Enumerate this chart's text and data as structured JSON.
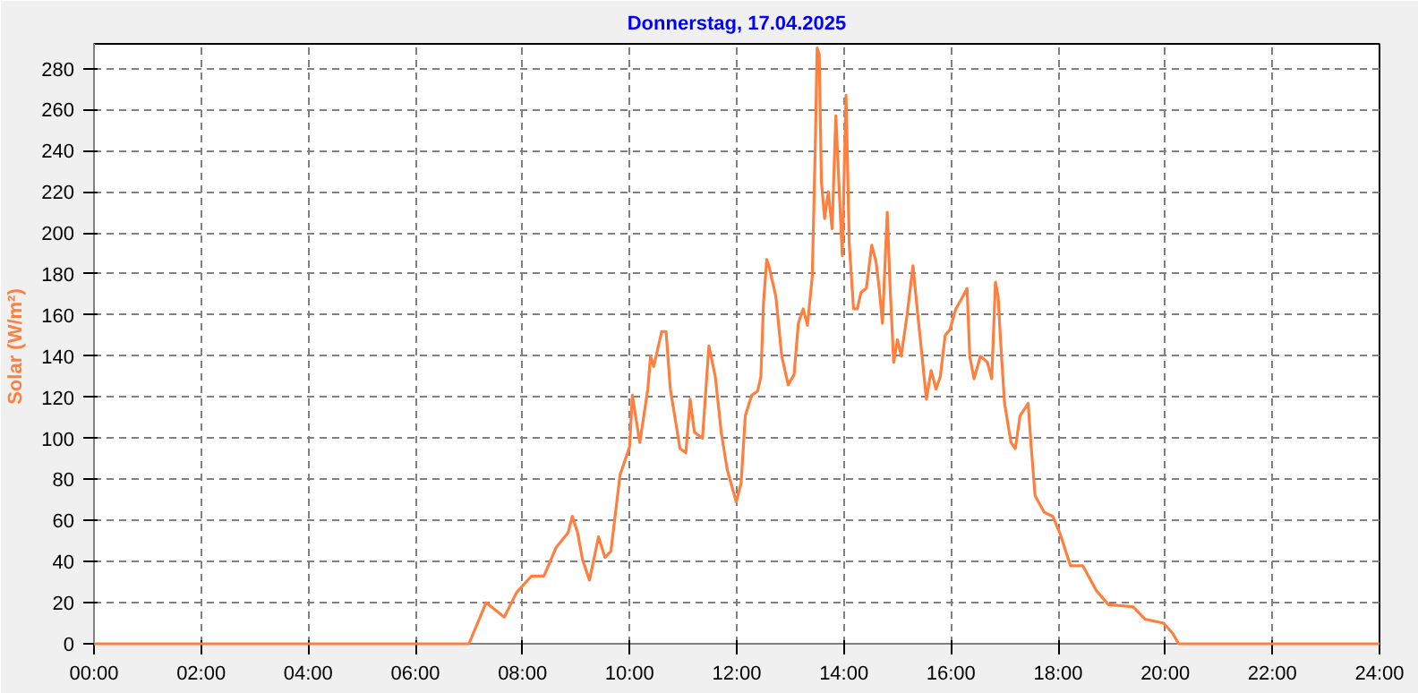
{
  "chart_data": {
    "type": "line",
    "title": "Donnerstag, 17.04.2025",
    "ylabel": "Solar  (W/m²)",
    "x": [
      0,
      7.0,
      7.32,
      7.66,
      7.89,
      8.17,
      8.4,
      8.63,
      8.85,
      8.93,
      9.03,
      9.12,
      9.25,
      9.42,
      9.54,
      9.65,
      9.82,
      10.0,
      10.05,
      10.19,
      10.34,
      10.39,
      10.45,
      10.6,
      10.68,
      10.76,
      10.94,
      11.05,
      11.13,
      11.21,
      11.36,
      11.48,
      11.6,
      11.71,
      11.82,
      11.99,
      12.08,
      12.16,
      12.28,
      12.39,
      12.45,
      12.5,
      12.56,
      12.6,
      12.73,
      12.84,
      12.96,
      13.07,
      13.15,
      13.24,
      13.32,
      13.41,
      13.47,
      13.5,
      13.54,
      13.58,
      13.64,
      13.71,
      13.78,
      13.85,
      13.9,
      13.97,
      14.04,
      14.1,
      14.18,
      14.25,
      14.32,
      14.42,
      14.52,
      14.6,
      14.66,
      14.72,
      14.81,
      14.86,
      14.93,
      15.0,
      15.07,
      15.18,
      15.29,
      15.38,
      15.46,
      15.54,
      15.63,
      15.72,
      15.8,
      15.89,
      15.98,
      16.09,
      16.2,
      16.3,
      16.35,
      16.43,
      16.55,
      16.68,
      16.76,
      16.83,
      16.88,
      16.92,
      16.95,
      17.0,
      17.12,
      17.2,
      17.29,
      17.44,
      17.5,
      17.57,
      17.74,
      17.9,
      18.03,
      18.23,
      18.46,
      18.71,
      18.94,
      19.4,
      19.62,
      19.97,
      20.14,
      20.25,
      24
    ],
    "series": [
      {
        "color": "#ff7f3f",
        "values": [
          0,
          0,
          20,
          13,
          25,
          33,
          33,
          47,
          54,
          62,
          54,
          41,
          31,
          52,
          42,
          45,
          82,
          96,
          121,
          98,
          124,
          140,
          135,
          152,
          152,
          124,
          95,
          93,
          119,
          103,
          100,
          145,
          130,
          103,
          85,
          69,
          78,
          111,
          121,
          123,
          130,
          166,
          187,
          184,
          169,
          140,
          126,
          131,
          156,
          163,
          155,
          179,
          247,
          290,
          287,
          225,
          207,
          220,
          202,
          257,
          228,
          189,
          267,
          195,
          163,
          163,
          171,
          173,
          194,
          186,
          173,
          156,
          210,
          175,
          137,
          148,
          140,
          160,
          184,
          160,
          140,
          119,
          133,
          124,
          130,
          150,
          153,
          163,
          168,
          173,
          140,
          129,
          140,
          137,
          129,
          176,
          169,
          150,
          137,
          117,
          98,
          95,
          111,
          117,
          95,
          72,
          64,
          62,
          54,
          38,
          38,
          26,
          19,
          18,
          12,
          10,
          5,
          0,
          0
        ]
      }
    ],
    "xlim": [
      0,
      24
    ],
    "ylim": [
      0,
      292
    ],
    "xticks": [
      {
        "value": 0,
        "label": "00:00"
      },
      {
        "value": 2,
        "label": "02:00"
      },
      {
        "value": 4,
        "label": "04:00"
      },
      {
        "value": 6,
        "label": "06:00"
      },
      {
        "value": 8,
        "label": "08:00"
      },
      {
        "value": 10,
        "label": "10:00"
      },
      {
        "value": 12,
        "label": "12:00"
      },
      {
        "value": 14,
        "label": "14:00"
      },
      {
        "value": 16,
        "label": "16:00"
      },
      {
        "value": 18,
        "label": "18:00"
      },
      {
        "value": 20,
        "label": "20:00"
      },
      {
        "value": 22,
        "label": "22:00"
      },
      {
        "value": 24,
        "label": "24:00"
      }
    ],
    "yticks": [
      0,
      20,
      40,
      60,
      80,
      100,
      120,
      140,
      160,
      180,
      200,
      220,
      240,
      260,
      280
    ],
    "grid": true,
    "marker": "none",
    "line_style": "solid"
  }
}
